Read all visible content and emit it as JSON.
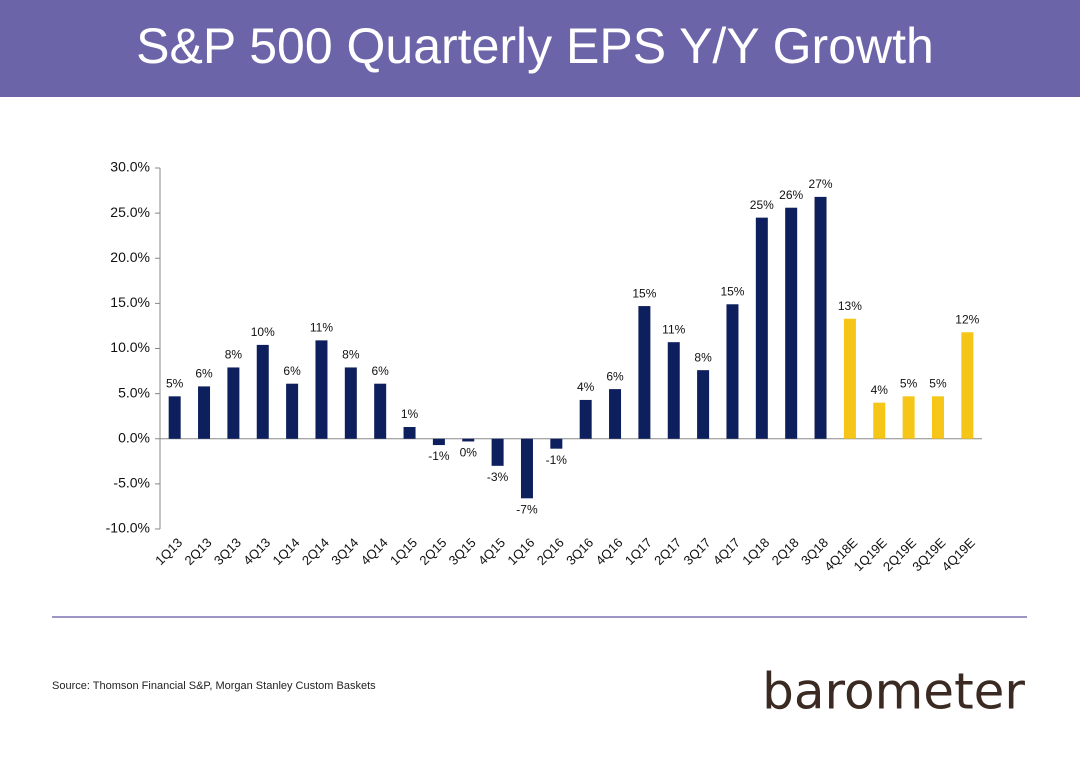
{
  "chart_data": {
    "type": "bar",
    "title": "S&P 500 Quarterly EPS Y/Y Growth",
    "source": "Source: Thomson Financial S&P, Morgan Stanley Custom Baskets",
    "categories": [
      "1Q13",
      "2Q13",
      "3Q13",
      "4Q13",
      "1Q14",
      "2Q14",
      "3Q14",
      "4Q14",
      "1Q15",
      "2Q15",
      "3Q15",
      "4Q15",
      "1Q16",
      "2Q16",
      "3Q16",
      "4Q16",
      "1Q17",
      "2Q17",
      "3Q17",
      "4Q17",
      "1Q18",
      "2Q18",
      "3Q18",
      "4Q18E",
      "1Q19E",
      "2Q19E",
      "3Q19E",
      "4Q19E"
    ],
    "values": [
      4.7,
      5.8,
      7.9,
      10.4,
      6.1,
      10.9,
      7.9,
      6.1,
      1.3,
      -0.7,
      -0.3,
      -3.0,
      -6.6,
      -1.1,
      4.3,
      5.5,
      14.7,
      10.7,
      7.6,
      14.9,
      24.5,
      25.6,
      26.8,
      13.3,
      4.0,
      4.7,
      4.7,
      11.8
    ],
    "value_labels": [
      "5%",
      "6%",
      "8%",
      "10%",
      "6%",
      "11%",
      "8%",
      "6%",
      "1%",
      "-1%",
      "0%",
      "-3%",
      "-7%",
      "-1%",
      "4%",
      "6%",
      "15%",
      "11%",
      "8%",
      "15%",
      "25%",
      "26%",
      "27%",
      "13%",
      "4%",
      "5%",
      "5%",
      "12%"
    ],
    "colors": [
      "#0d1f5c",
      "#0d1f5c",
      "#0d1f5c",
      "#0d1f5c",
      "#0d1f5c",
      "#0d1f5c",
      "#0d1f5c",
      "#0d1f5c",
      "#0d1f5c",
      "#0d1f5c",
      "#0d1f5c",
      "#0d1f5c",
      "#0d1f5c",
      "#0d1f5c",
      "#0d1f5c",
      "#0d1f5c",
      "#0d1f5c",
      "#0d1f5c",
      "#0d1f5c",
      "#0d1f5c",
      "#0d1f5c",
      "#0d1f5c",
      "#0d1f5c",
      "#f5c518",
      "#f5c518",
      "#f5c518",
      "#f5c518",
      "#f5c518"
    ],
    "ylim": [
      -10,
      30
    ],
    "yticks": [
      {
        "value": -10,
        "label": "-10.0%"
      },
      {
        "value": -5,
        "label": "-5.0%"
      },
      {
        "value": 0,
        "label": "0.0%"
      },
      {
        "value": 5,
        "label": "5.0%"
      },
      {
        "value": 10,
        "label": "10.0%"
      },
      {
        "value": 15,
        "label": "15.0%"
      },
      {
        "value": 20,
        "label": "20.0%"
      },
      {
        "value": 25,
        "label": "25.0%"
      },
      {
        "value": 30,
        "label": "30.0%"
      }
    ],
    "grid": false
  },
  "brand": "barometer"
}
